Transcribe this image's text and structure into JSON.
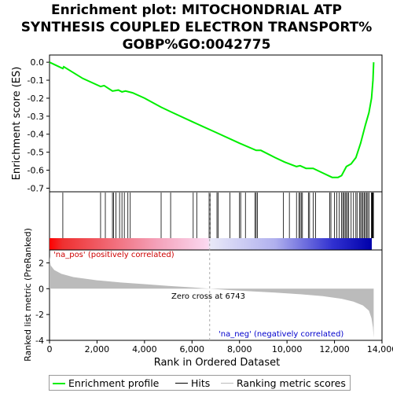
{
  "title_lines": [
    "Enrichment plot: MITOCHONDRIAL ATP",
    "SYNTHESIS COUPLED ELECTRON TRANSPORT%",
    "GOBP%GO:0042775"
  ],
  "colors": {
    "es_line": "#00ee00",
    "hits": "#000000",
    "metric_fill": "#bbbbbb",
    "pos_label": "#cc0000",
    "neg_label": "#0000cc",
    "zero_line": "#aaaaaa"
  },
  "chart_data": {
    "type": "line",
    "x_range": [
      0,
      14000
    ],
    "x_ticks": [
      "0",
      "2,000",
      "4,000",
      "6,000",
      "8,000",
      "10,000",
      "12,000",
      "14,000"
    ],
    "x_tick_values": [
      0,
      2000,
      4000,
      6000,
      8000,
      10000,
      12000,
      14000
    ],
    "xlabel": "Rank in Ordered Dataset",
    "n_genes": 13650,
    "es_panel": {
      "ylabel": "Enrichment score (ES)",
      "ylim": [
        -0.72,
        0.04
      ],
      "y_ticks": [
        "0.0",
        "-0.1",
        "-0.2",
        "-0.3",
        "-0.4",
        "-0.5",
        "-0.6",
        "-0.7"
      ],
      "y_tick_values": [
        0.0,
        -0.1,
        -0.2,
        -0.3,
        -0.4,
        -0.5,
        -0.6,
        -0.7
      ],
      "series_name": "Enrichment profile",
      "points": [
        [
          0,
          0.0
        ],
        [
          560,
          -0.035
        ],
        [
          600,
          -0.025
        ],
        [
          1400,
          -0.09
        ],
        [
          2150,
          -0.135
        ],
        [
          2300,
          -0.13
        ],
        [
          2650,
          -0.16
        ],
        [
          2900,
          -0.155
        ],
        [
          3050,
          -0.165
        ],
        [
          3200,
          -0.16
        ],
        [
          3500,
          -0.17
        ],
        [
          4000,
          -0.2
        ],
        [
          4700,
          -0.25
        ],
        [
          5100,
          -0.275
        ],
        [
          6000,
          -0.33
        ],
        [
          7000,
          -0.39
        ],
        [
          8000,
          -0.45
        ],
        [
          8700,
          -0.49
        ],
        [
          8900,
          -0.49
        ],
        [
          9500,
          -0.53
        ],
        [
          9900,
          -0.555
        ],
        [
          10400,
          -0.58
        ],
        [
          10550,
          -0.575
        ],
        [
          10800,
          -0.59
        ],
        [
          11100,
          -0.59
        ],
        [
          11500,
          -0.615
        ],
        [
          11900,
          -0.64
        ],
        [
          12150,
          -0.64
        ],
        [
          12300,
          -0.63
        ],
        [
          12500,
          -0.58
        ],
        [
          12700,
          -0.565
        ],
        [
          12900,
          -0.53
        ],
        [
          13100,
          -0.45
        ],
        [
          13300,
          -0.35
        ],
        [
          13450,
          -0.28
        ],
        [
          13560,
          -0.2
        ],
        [
          13620,
          -0.1
        ],
        [
          13650,
          0.0
        ]
      ]
    },
    "hits": [
      560,
      2150,
      2350,
      2650,
      2700,
      2800,
      2950,
      3050,
      3150,
      3300,
      3400,
      4700,
      5100,
      6050,
      6200,
      6720,
      6760,
      7050,
      7100,
      7600,
      8000,
      8050,
      8250,
      8650,
      8700,
      8750,
      9850,
      10100,
      10400,
      10500,
      10550,
      10600,
      10650,
      10900,
      10950,
      11100,
      11200,
      11800,
      11850,
      12000,
      12100,
      12200,
      12300,
      12350,
      12400,
      12450,
      12500,
      12550,
      12600,
      12700,
      12800,
      12900,
      12950,
      13050,
      13100,
      13150,
      13200,
      13250,
      13300,
      13350,
      13400,
      13450,
      13550,
      13580,
      13600,
      13620,
      13640
    ],
    "metric_panel": {
      "ylabel": "Ranked list metric (PreRanked)",
      "ylim": [
        -4,
        3
      ],
      "y_ticks": [
        "2",
        "0",
        "-2",
        "-4"
      ],
      "y_tick_values": [
        2,
        0,
        -2,
        -4
      ],
      "zero_cross_rank": 6743,
      "zero_cross_label": "Zero cross at 6743",
      "pos_label": "'na_pos' (positively correlated)",
      "neg_label": "'na_neg' (negatively correlated)",
      "curve": [
        [
          0,
          2.5
        ],
        [
          50,
          1.8
        ],
        [
          200,
          1.45
        ],
        [
          500,
          1.15
        ],
        [
          1000,
          0.9
        ],
        [
          2000,
          0.65
        ],
        [
          3000,
          0.48
        ],
        [
          4000,
          0.35
        ],
        [
          5000,
          0.22
        ],
        [
          6000,
          0.1
        ],
        [
          6743,
          0.0
        ],
        [
          7500,
          -0.1
        ],
        [
          8500,
          -0.2
        ],
        [
          9500,
          -0.3
        ],
        [
          10500,
          -0.42
        ],
        [
          11500,
          -0.58
        ],
        [
          12300,
          -0.78
        ],
        [
          12800,
          -1.0
        ],
        [
          13200,
          -1.3
        ],
        [
          13450,
          -1.7
        ],
        [
          13560,
          -2.3
        ],
        [
          13620,
          -3.0
        ],
        [
          13650,
          -3.8
        ]
      ]
    },
    "legend": [
      "Enrichment profile",
      "Hits",
      "Ranking metric scores"
    ],
    "legend_position": "bottom"
  }
}
